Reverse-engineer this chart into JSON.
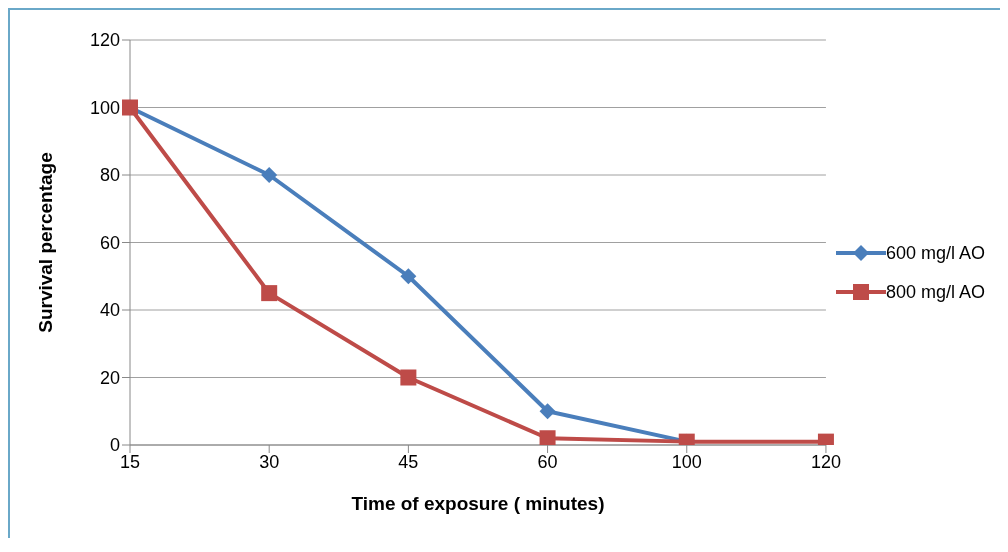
{
  "chart_data": {
    "type": "line",
    "xlabel": "Time of exposure ( minutes)",
    "ylabel": "Survival percentage",
    "categories": [
      "15",
      "30",
      "45",
      "60",
      "100",
      "120"
    ],
    "series": [
      {
        "name": "600 mg/l AO",
        "color": "#4a7ebb",
        "marker": "diamond",
        "values": [
          100,
          80,
          50,
          10,
          1,
          null
        ]
      },
      {
        "name": "800 mg/l AO",
        "color": "#be4b48",
        "marker": "square",
        "values": [
          100,
          45,
          20,
          2,
          1,
          1
        ]
      }
    ],
    "ylim": [
      0,
      120
    ],
    "yticks": [
      0,
      20,
      40,
      60,
      80,
      100,
      120
    ],
    "grid": "y",
    "legend": "right",
    "line_style": "solid"
  }
}
